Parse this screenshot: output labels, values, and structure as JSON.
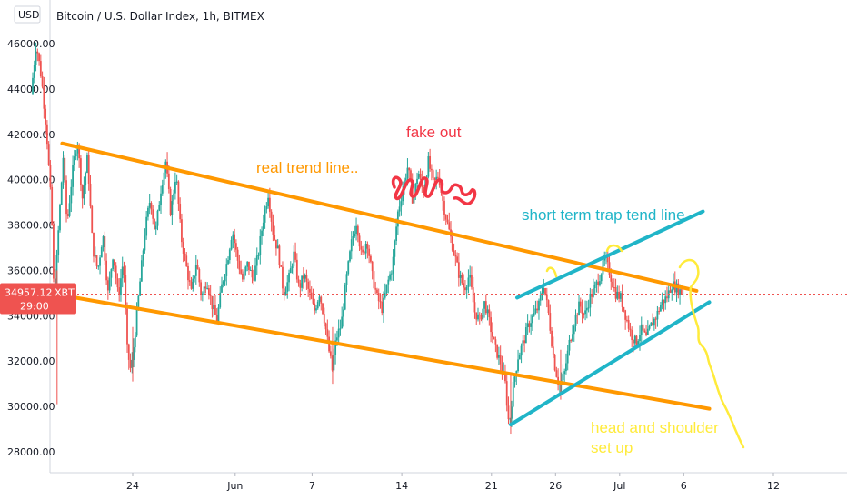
{
  "header": {
    "currency_button": "USD",
    "title": "Bitcoin / U.S. Dollar Index, 1h, BITMEX"
  },
  "price_badge": {
    "price": "34957.12",
    "symbol": "XBT",
    "countdown": "29:00"
  },
  "colors": {
    "up_candle": "#26a69a",
    "down_candle": "#ef5350",
    "trend_orange": "#ff9800",
    "trap_cyan": "#20b5c8",
    "fakeout_red": "#f23645",
    "hs_yellow": "#ffeb3b",
    "price_line": "#ef5350"
  },
  "chart_data": {
    "type": "candlestick",
    "title": "Bitcoin / U.S. Dollar Index, 1h, BITMEX",
    "ylim": [
      27000,
      47000
    ],
    "y_ticks": [
      "46000.00",
      "44000.00",
      "42000.00",
      "40000.00",
      "38000.00",
      "36000.00",
      "34000.00",
      "32000.00",
      "30000.00",
      "28000.00"
    ],
    "x_ticks": [
      "24",
      "Jun",
      "7",
      "14",
      "21",
      "26",
      "Jul",
      "6",
      "12"
    ],
    "x_tick_days": [
      24,
      32,
      38,
      45,
      52,
      57,
      62,
      67,
      74
    ],
    "x_range_days": [
      16,
      83
    ],
    "last_price": 34957.12,
    "price_path": [
      [
        16.2,
        43800
      ],
      [
        16.6,
        46000
      ],
      [
        17.0,
        44500
      ],
      [
        17.4,
        42200
      ],
      [
        17.8,
        38500
      ],
      [
        18.0,
        34500
      ],
      [
        18.3,
        37500
      ],
      [
        18.7,
        41000
      ],
      [
        19.0,
        38000
      ],
      [
        19.4,
        40200
      ],
      [
        19.8,
        41800
      ],
      [
        20.2,
        39200
      ],
      [
        20.6,
        41000
      ],
      [
        21.0,
        37000
      ],
      [
        21.4,
        36000
      ],
      [
        21.8,
        37600
      ],
      [
        22.2,
        35000
      ],
      [
        22.6,
        36800
      ],
      [
        23.0,
        34800
      ],
      [
        23.4,
        36500
      ],
      [
        23.7,
        32500
      ],
      [
        24.0,
        31500
      ],
      [
        24.3,
        33200
      ],
      [
        24.7,
        35500
      ],
      [
        25.1,
        37800
      ],
      [
        25.5,
        39200
      ],
      [
        25.9,
        37600
      ],
      [
        26.3,
        39500
      ],
      [
        26.7,
        40800
      ],
      [
        27.1,
        38500
      ],
      [
        27.5,
        40300
      ],
      [
        27.9,
        37500
      ],
      [
        28.3,
        36200
      ],
      [
        28.7,
        35000
      ],
      [
        29.1,
        36400
      ],
      [
        29.5,
        34800
      ],
      [
        29.9,
        35600
      ],
      [
        30.3,
        34500
      ],
      [
        30.7,
        33800
      ],
      [
        31.1,
        35400
      ],
      [
        31.5,
        36400
      ],
      [
        31.9,
        37800
      ],
      [
        32.3,
        36500
      ],
      [
        32.7,
        35600
      ],
      [
        33.1,
        36300
      ],
      [
        33.5,
        35600
      ],
      [
        33.9,
        36600
      ],
      [
        34.3,
        38200
      ],
      [
        34.7,
        39400
      ],
      [
        35.1,
        37600
      ],
      [
        35.5,
        36800
      ],
      [
        35.9,
        35000
      ],
      [
        36.3,
        35600
      ],
      [
        36.7,
        36700
      ],
      [
        37.1,
        35200
      ],
      [
        37.5,
        35800
      ],
      [
        37.9,
        35000
      ],
      [
        38.3,
        34200
      ],
      [
        38.7,
        35000
      ],
      [
        39.1,
        33800
      ],
      [
        39.4,
        32600
      ],
      [
        39.7,
        31600
      ],
      [
        40.0,
        33000
      ],
      [
        40.4,
        33600
      ],
      [
        40.8,
        35600
      ],
      [
        41.2,
        37200
      ],
      [
        41.6,
        38200
      ],
      [
        42.0,
        36500
      ],
      [
        42.4,
        37400
      ],
      [
        42.8,
        35800
      ],
      [
        43.2,
        34800
      ],
      [
        43.6,
        34300
      ],
      [
        44.0,
        35400
      ],
      [
        44.4,
        36200
      ],
      [
        44.8,
        38500
      ],
      [
        45.2,
        39600
      ],
      [
        45.6,
        40600
      ],
      [
        46.0,
        39000
      ],
      [
        46.4,
        40400
      ],
      [
        46.8,
        39400
      ],
      [
        47.2,
        40800
      ],
      [
        47.6,
        39800
      ],
      [
        48.0,
        40200
      ],
      [
        48.4,
        38800
      ],
      [
        48.8,
        37800
      ],
      [
        49.2,
        36800
      ],
      [
        49.6,
        35800
      ],
      [
        50.0,
        35200
      ],
      [
        50.4,
        35800
      ],
      [
        50.8,
        34200
      ],
      [
        51.2,
        33800
      ],
      [
        51.6,
        34600
      ],
      [
        52.0,
        33600
      ],
      [
        52.4,
        32600
      ],
      [
        52.8,
        32000
      ],
      [
        53.2,
        31000
      ],
      [
        53.5,
        29100
      ],
      [
        53.8,
        30800
      ],
      [
        54.2,
        32200
      ],
      [
        54.6,
        32800
      ],
      [
        55.0,
        33600
      ],
      [
        55.4,
        34000
      ],
      [
        55.8,
        34400
      ],
      [
        56.2,
        35400
      ],
      [
        56.6,
        34000
      ],
      [
        57.0,
        32000
      ],
      [
        57.4,
        30900
      ],
      [
        57.8,
        31400
      ],
      [
        58.2,
        32800
      ],
      [
        58.6,
        33800
      ],
      [
        59.0,
        34500
      ],
      [
        59.4,
        34000
      ],
      [
        59.8,
        34800
      ],
      [
        60.2,
        35200
      ],
      [
        60.6,
        35800
      ],
      [
        61.0,
        36500
      ],
      [
        61.4,
        35800
      ],
      [
        61.8,
        35000
      ],
      [
        62.2,
        34800
      ],
      [
        62.6,
        34000
      ],
      [
        63.0,
        33200
      ],
      [
        63.4,
        32800
      ],
      [
        63.8,
        33400
      ],
      [
        64.2,
        33000
      ],
      [
        64.6,
        33600
      ],
      [
        65.0,
        34000
      ],
      [
        65.4,
        34600
      ],
      [
        65.8,
        34800
      ],
      [
        66.2,
        35400
      ],
      [
        66.6,
        35200
      ],
      [
        67.0,
        35000
      ]
    ],
    "drawings": [
      {
        "kind": "trend_line",
        "name": "real-trend-upper",
        "color": "orange",
        "points": [
          [
            18.5,
            41600
          ],
          [
            68.0,
            35100
          ]
        ]
      },
      {
        "kind": "trend_line",
        "name": "real-trend-lower",
        "color": "orange",
        "points": [
          [
            18.5,
            34900
          ],
          [
            69.0,
            29900
          ]
        ]
      },
      {
        "kind": "trend_line",
        "name": "trap-upper",
        "color": "cyan",
        "points": [
          [
            54.0,
            34800
          ],
          [
            68.5,
            38600
          ]
        ]
      },
      {
        "kind": "trend_line",
        "name": "trap-lower",
        "color": "cyan",
        "points": [
          [
            53.5,
            29200
          ],
          [
            69.0,
            34600
          ]
        ]
      }
    ],
    "annotations": [
      {
        "text": "fake out",
        "color": "red"
      },
      {
        "text": "real trend line..",
        "color": "orange"
      },
      {
        "text": "short term trap tend line.",
        "color": "cyan"
      },
      {
        "text": "head and shoulder set up",
        "color": "yellow"
      }
    ]
  }
}
